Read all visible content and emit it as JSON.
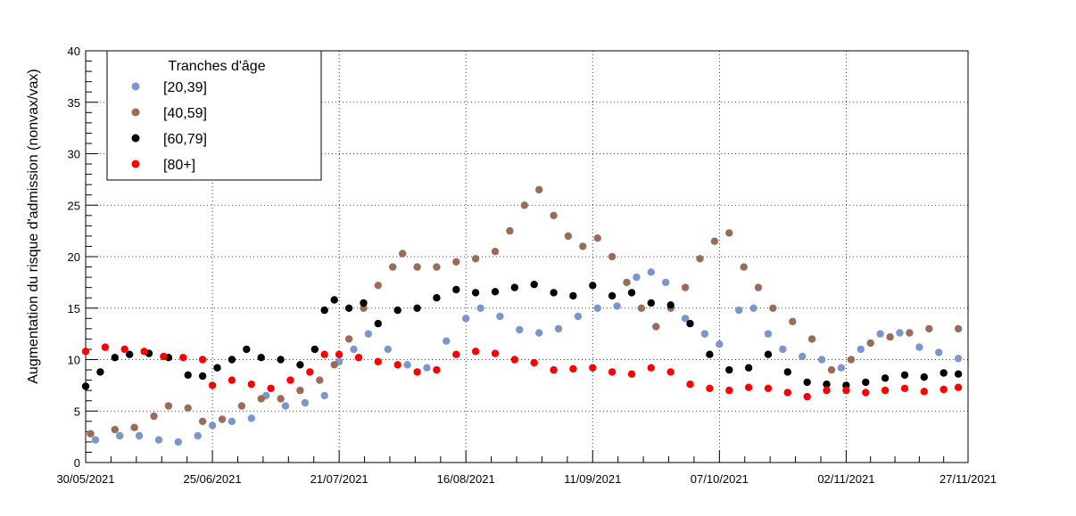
{
  "chart_data": {
    "type": "scatter",
    "title": "",
    "xlabel": "",
    "ylabel": "Augmentation du risque d'admission (nonvax/vax)",
    "ylim": [
      0,
      40
    ],
    "yticks": [
      0,
      5,
      10,
      15,
      20,
      25,
      30,
      35,
      40
    ],
    "xrange": [
      "30/05/2021",
      "27/11/2021"
    ],
    "xtick_labels": [
      "30/05/2021",
      "25/06/2021",
      "21/07/2021",
      "16/08/2021",
      "11/09/2021",
      "07/10/2021",
      "02/11/2021",
      "27/11/2021"
    ],
    "grid": true,
    "legend": {
      "title": "Tranches d'âge",
      "position": "top-left"
    },
    "series": [
      {
        "name": "[20,39]",
        "color": "#7b96cc",
        "points": [
          [
            "01/06/2021",
            2.2
          ],
          [
            "06/06/2021",
            2.6
          ],
          [
            "10/06/2021",
            2.6
          ],
          [
            "14/06/2021",
            2.2
          ],
          [
            "18/06/2021",
            2.0
          ],
          [
            "22/06/2021",
            2.6
          ],
          [
            "25/06/2021",
            3.6
          ],
          [
            "29/06/2021",
            4.0
          ],
          [
            "03/07/2021",
            4.3
          ],
          [
            "06/07/2021",
            6.5
          ],
          [
            "10/07/2021",
            5.5
          ],
          [
            "14/07/2021",
            5.8
          ],
          [
            "18/07/2021",
            6.5
          ],
          [
            "21/07/2021",
            9.8
          ],
          [
            "24/07/2021",
            11.0
          ],
          [
            "27/07/2021",
            12.5
          ],
          [
            "31/07/2021",
            11.0
          ],
          [
            "04/08/2021",
            9.5
          ],
          [
            "08/08/2021",
            9.2
          ],
          [
            "12/08/2021",
            11.8
          ],
          [
            "16/08/2021",
            14.0
          ],
          [
            "19/08/2021",
            15.0
          ],
          [
            "23/08/2021",
            14.2
          ],
          [
            "27/08/2021",
            12.9
          ],
          [
            "31/08/2021",
            12.6
          ],
          [
            "04/09/2021",
            13.0
          ],
          [
            "08/09/2021",
            14.2
          ],
          [
            "12/09/2021",
            15.0
          ],
          [
            "16/09/2021",
            15.2
          ],
          [
            "20/09/2021",
            18.0
          ],
          [
            "23/09/2021",
            18.5
          ],
          [
            "26/09/2021",
            17.5
          ],
          [
            "30/09/2021",
            14.0
          ],
          [
            "04/10/2021",
            12.5
          ],
          [
            "07/10/2021",
            11.5
          ],
          [
            "11/10/2021",
            14.8
          ],
          [
            "14/10/2021",
            15.0
          ],
          [
            "17/10/2021",
            12.5
          ],
          [
            "20/10/2021",
            11.0
          ],
          [
            "24/10/2021",
            10.3
          ],
          [
            "28/10/2021",
            10.0
          ],
          [
            "01/11/2021",
            9.2
          ],
          [
            "05/11/2021",
            11.0
          ],
          [
            "09/11/2021",
            12.5
          ],
          [
            "13/11/2021",
            12.6
          ],
          [
            "17/11/2021",
            11.2
          ],
          [
            "21/11/2021",
            10.7
          ],
          [
            "25/11/2021",
            10.1
          ]
        ]
      },
      {
        "name": "[40,59]",
        "color": "#9c6b57",
        "points": [
          [
            "31/05/2021",
            2.8
          ],
          [
            "05/06/2021",
            3.2
          ],
          [
            "09/06/2021",
            3.4
          ],
          [
            "13/06/2021",
            4.5
          ],
          [
            "16/06/2021",
            5.5
          ],
          [
            "20/06/2021",
            5.3
          ],
          [
            "23/06/2021",
            4.0
          ],
          [
            "27/06/2021",
            4.2
          ],
          [
            "01/07/2021",
            5.5
          ],
          [
            "05/07/2021",
            6.2
          ],
          [
            "09/07/2021",
            6.2
          ],
          [
            "13/07/2021",
            7.0
          ],
          [
            "17/07/2021",
            8.0
          ],
          [
            "20/07/2021",
            9.5
          ],
          [
            "23/07/2021",
            12.0
          ],
          [
            "26/07/2021",
            15.0
          ],
          [
            "29/07/2021",
            17.2
          ],
          [
            "01/08/2021",
            19.0
          ],
          [
            "03/08/2021",
            20.3
          ],
          [
            "06/08/2021",
            19.0
          ],
          [
            "10/08/2021",
            19.0
          ],
          [
            "14/08/2021",
            19.5
          ],
          [
            "18/08/2021",
            19.8
          ],
          [
            "22/08/2021",
            20.5
          ],
          [
            "25/08/2021",
            22.5
          ],
          [
            "28/08/2021",
            25.0
          ],
          [
            "31/08/2021",
            26.5
          ],
          [
            "03/09/2021",
            24.0
          ],
          [
            "06/09/2021",
            22.0
          ],
          [
            "09/09/2021",
            21.0
          ],
          [
            "12/09/2021",
            21.8
          ],
          [
            "15/09/2021",
            20.0
          ],
          [
            "18/09/2021",
            17.5
          ],
          [
            "21/09/2021",
            15.0
          ],
          [
            "24/09/2021",
            13.2
          ],
          [
            "27/09/2021",
            15.0
          ],
          [
            "30/09/2021",
            17.0
          ],
          [
            "03/10/2021",
            19.8
          ],
          [
            "06/10/2021",
            21.5
          ],
          [
            "09/10/2021",
            22.3
          ],
          [
            "12/10/2021",
            19.0
          ],
          [
            "15/10/2021",
            17.0
          ],
          [
            "18/10/2021",
            15.0
          ],
          [
            "22/10/2021",
            13.7
          ],
          [
            "26/10/2021",
            12.0
          ],
          [
            "30/10/2021",
            9.0
          ],
          [
            "03/11/2021",
            10.0
          ],
          [
            "07/11/2021",
            11.6
          ],
          [
            "11/11/2021",
            12.2
          ],
          [
            "15/11/2021",
            12.6
          ],
          [
            "19/11/2021",
            13.0
          ],
          [
            "25/11/2021",
            13.0
          ]
        ]
      },
      {
        "name": "[60,79]",
        "color": "#000000",
        "points": [
          [
            "30/05/2021",
            7.4
          ],
          [
            "02/06/2021",
            8.8
          ],
          [
            "05/06/2021",
            10.2
          ],
          [
            "08/06/2021",
            10.5
          ],
          [
            "12/06/2021",
            10.6
          ],
          [
            "16/06/2021",
            10.2
          ],
          [
            "20/06/2021",
            8.5
          ],
          [
            "23/06/2021",
            8.4
          ],
          [
            "26/06/2021",
            9.2
          ],
          [
            "29/06/2021",
            10.0
          ],
          [
            "02/07/2021",
            11.0
          ],
          [
            "05/07/2021",
            10.2
          ],
          [
            "09/07/2021",
            10.0
          ],
          [
            "13/07/2021",
            9.5
          ],
          [
            "16/07/2021",
            11.0
          ],
          [
            "18/07/2021",
            14.8
          ],
          [
            "20/07/2021",
            15.8
          ],
          [
            "23/07/2021",
            15.0
          ],
          [
            "26/07/2021",
            15.5
          ],
          [
            "29/07/2021",
            13.5
          ],
          [
            "02/08/2021",
            14.8
          ],
          [
            "06/08/2021",
            15.0
          ],
          [
            "10/08/2021",
            16.0
          ],
          [
            "14/08/2021",
            16.8
          ],
          [
            "18/08/2021",
            16.5
          ],
          [
            "22/08/2021",
            16.6
          ],
          [
            "26/08/2021",
            17.0
          ],
          [
            "30/08/2021",
            17.3
          ],
          [
            "03/09/2021",
            16.5
          ],
          [
            "07/09/2021",
            16.2
          ],
          [
            "11/09/2021",
            17.2
          ],
          [
            "15/09/2021",
            16.2
          ],
          [
            "19/09/2021",
            16.5
          ],
          [
            "23/09/2021",
            15.5
          ],
          [
            "27/09/2021",
            15.3
          ],
          [
            "01/10/2021",
            13.5
          ],
          [
            "05/10/2021",
            10.5
          ],
          [
            "09/10/2021",
            9.0
          ],
          [
            "13/10/2021",
            9.2
          ],
          [
            "17/10/2021",
            10.5
          ],
          [
            "21/10/2021",
            8.8
          ],
          [
            "25/10/2021",
            7.8
          ],
          [
            "29/10/2021",
            7.6
          ],
          [
            "02/11/2021",
            7.5
          ],
          [
            "06/11/2021",
            7.8
          ],
          [
            "10/11/2021",
            8.2
          ],
          [
            "14/11/2021",
            8.5
          ],
          [
            "18/11/2021",
            8.3
          ],
          [
            "22/11/2021",
            8.7
          ],
          [
            "25/11/2021",
            8.6
          ]
        ]
      },
      {
        "name": "[80+]",
        "color": "#ff0000",
        "points": [
          [
            "30/05/2021",
            10.8
          ],
          [
            "03/06/2021",
            11.2
          ],
          [
            "07/06/2021",
            11.0
          ],
          [
            "11/06/2021",
            10.8
          ],
          [
            "15/06/2021",
            10.3
          ],
          [
            "19/06/2021",
            10.2
          ],
          [
            "23/06/2021",
            10.0
          ],
          [
            "25/06/2021",
            7.5
          ],
          [
            "29/06/2021",
            8.0
          ],
          [
            "03/07/2021",
            7.6
          ],
          [
            "07/07/2021",
            7.2
          ],
          [
            "11/07/2021",
            8.0
          ],
          [
            "15/07/2021",
            8.8
          ],
          [
            "18/07/2021",
            10.5
          ],
          [
            "21/07/2021",
            10.5
          ],
          [
            "25/07/2021",
            10.2
          ],
          [
            "29/07/2021",
            9.8
          ],
          [
            "02/08/2021",
            9.5
          ],
          [
            "06/08/2021",
            8.8
          ],
          [
            "10/08/2021",
            9.0
          ],
          [
            "14/08/2021",
            10.5
          ],
          [
            "18/08/2021",
            10.8
          ],
          [
            "22/08/2021",
            10.6
          ],
          [
            "26/08/2021",
            10.0
          ],
          [
            "30/08/2021",
            9.7
          ],
          [
            "03/09/2021",
            9.0
          ],
          [
            "07/09/2021",
            9.1
          ],
          [
            "11/09/2021",
            9.2
          ],
          [
            "15/09/2021",
            8.8
          ],
          [
            "19/09/2021",
            8.6
          ],
          [
            "23/09/2021",
            9.2
          ],
          [
            "27/09/2021",
            8.8
          ],
          [
            "01/10/2021",
            7.6
          ],
          [
            "05/10/2021",
            7.2
          ],
          [
            "09/10/2021",
            7.0
          ],
          [
            "13/10/2021",
            7.3
          ],
          [
            "17/10/2021",
            7.2
          ],
          [
            "21/10/2021",
            6.8
          ],
          [
            "25/10/2021",
            6.4
          ],
          [
            "29/10/2021",
            7.0
          ],
          [
            "02/11/2021",
            7.0
          ],
          [
            "06/11/2021",
            6.8
          ],
          [
            "10/11/2021",
            7.0
          ],
          [
            "14/11/2021",
            7.2
          ],
          [
            "18/11/2021",
            6.9
          ],
          [
            "22/11/2021",
            7.1
          ],
          [
            "25/11/2021",
            7.3
          ]
        ]
      }
    ]
  }
}
